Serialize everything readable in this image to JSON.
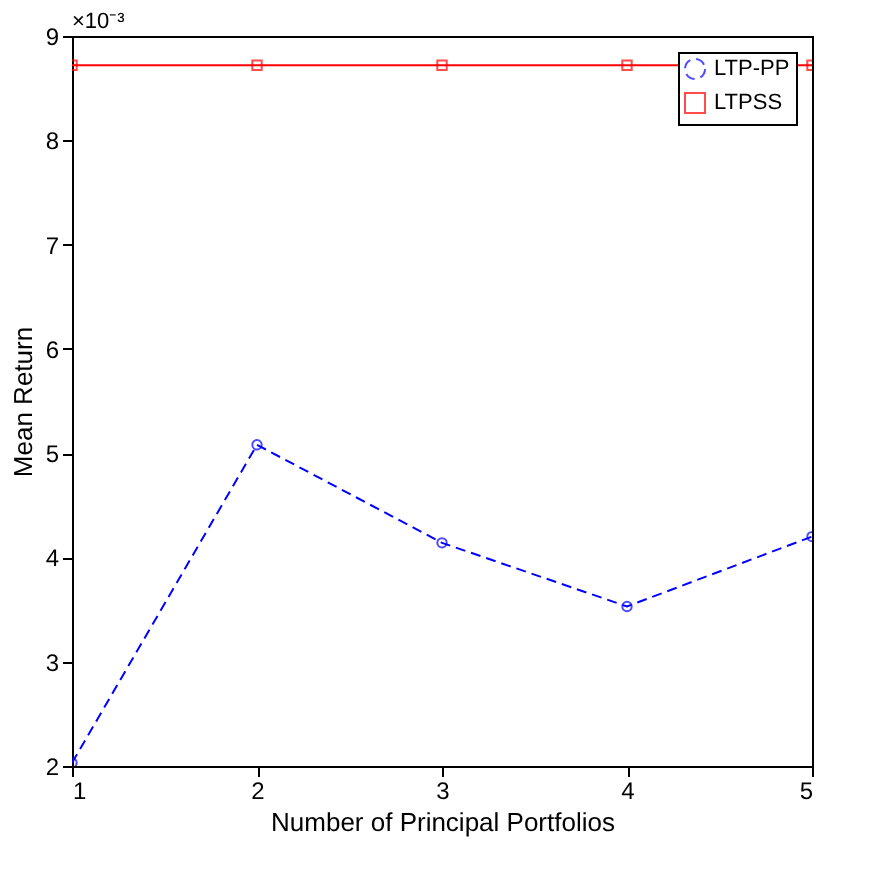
{
  "chart_data": {
    "type": "line",
    "xlabel": "Number of Principal Portfolios",
    "ylabel": "Mean Return",
    "x": [
      1,
      2,
      3,
      4,
      5
    ],
    "series": [
      {
        "name": "LTP-PP",
        "color": "#0000ff",
        "values": [
          2.03,
          5.08,
          4.14,
          3.53,
          4.2
        ],
        "line_style": "dashed",
        "marker": "circle"
      },
      {
        "name": "LTPSS",
        "color": "#ff0000",
        "values": [
          8.72,
          8.72,
          8.72,
          8.72,
          8.72
        ],
        "line_style": "solid",
        "marker": "square"
      }
    ],
    "xlim": [
      1,
      5
    ],
    "xticks": [
      1,
      2,
      3,
      4,
      5
    ],
    "ylim": [
      2,
      9
    ],
    "yticks": [
      2,
      3,
      4,
      5,
      6,
      7,
      8,
      9
    ],
    "annotations": [
      "×10⁻³"
    ],
    "grid": false,
    "legend": "top right"
  }
}
